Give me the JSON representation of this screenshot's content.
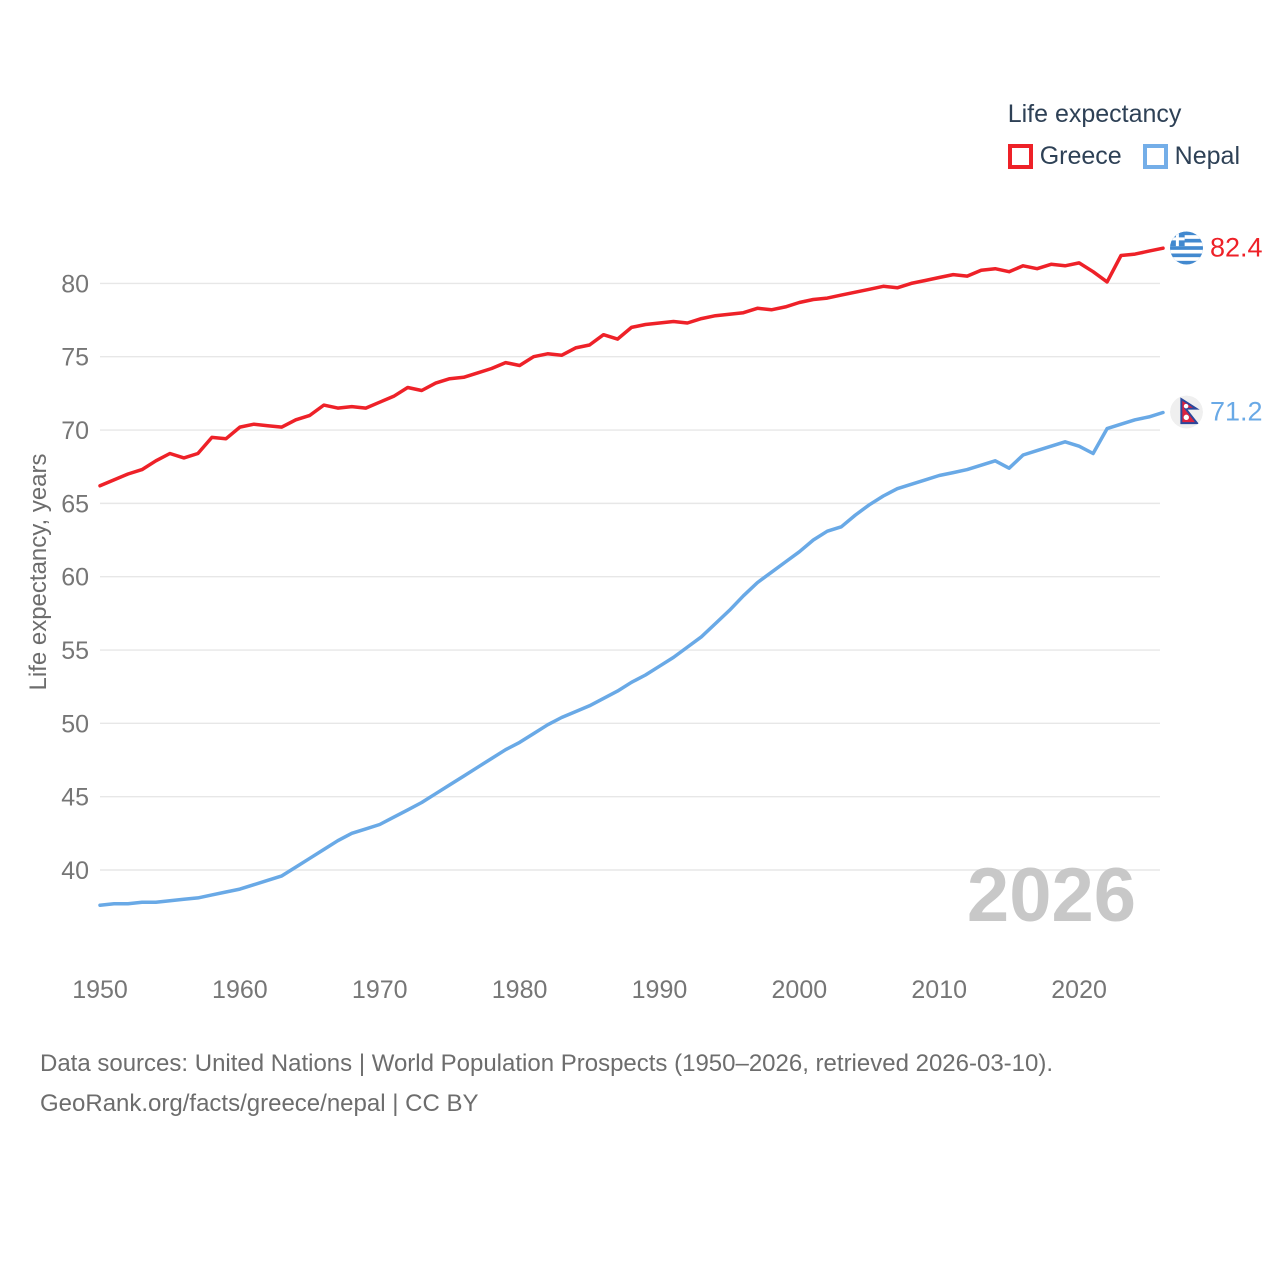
{
  "legend": {
    "title": "Life expectancy",
    "items": [
      {
        "label": "Greece",
        "color": "#ee2128"
      },
      {
        "label": "Nepal",
        "color": "#74aee8"
      }
    ]
  },
  "watermark": "2026",
  "footer": {
    "line1": "Data sources: United Nations | World Population Prospects (1950–2026, retrieved 2026-03-10).",
    "line2": "GeoRank.org/facts/greece/nepal | CC BY"
  },
  "colors": {
    "greece_line": "#ee2128",
    "nepal_line": "#69a9e6",
    "tick_label": "#767676",
    "axis_title": "#6d6d6d",
    "gridline": "#e7e7e7",
    "watermark": "#c8c8c8",
    "legend_text": "#2e4156"
  },
  "chart_data": {
    "type": "line",
    "title": "Life expectancy",
    "xlabel": "",
    "ylabel": "Life expectancy, years",
    "xlim": [
      1950,
      2026
    ],
    "ylim": [
      36.5,
      84
    ],
    "grid": true,
    "legend_position": "top-right",
    "xticks": [
      1950,
      1960,
      1970,
      1980,
      1990,
      2000,
      2010,
      2020
    ],
    "yticks": [
      40,
      45,
      50,
      55,
      60,
      65,
      70,
      75,
      80
    ],
    "x": [
      1950,
      1951,
      1952,
      1953,
      1954,
      1955,
      1956,
      1957,
      1958,
      1959,
      1960,
      1961,
      1962,
      1963,
      1964,
      1965,
      1966,
      1967,
      1968,
      1969,
      1970,
      1971,
      1972,
      1973,
      1974,
      1975,
      1976,
      1977,
      1978,
      1979,
      1980,
      1981,
      1982,
      1983,
      1984,
      1985,
      1986,
      1987,
      1988,
      1989,
      1990,
      1991,
      1992,
      1993,
      1994,
      1995,
      1996,
      1997,
      1998,
      1999,
      2000,
      2001,
      2002,
      2003,
      2004,
      2005,
      2006,
      2007,
      2008,
      2009,
      2010,
      2011,
      2012,
      2013,
      2014,
      2015,
      2016,
      2017,
      2018,
      2019,
      2020,
      2021,
      2022,
      2023,
      2024,
      2025,
      2026
    ],
    "series": [
      {
        "name": "Greece",
        "color": "#ee2128",
        "end_label": "82.4",
        "end_value": 82.4,
        "values": [
          66.2,
          66.6,
          67.0,
          67.3,
          67.9,
          68.4,
          68.1,
          68.4,
          69.5,
          69.4,
          70.2,
          70.4,
          70.3,
          70.2,
          70.7,
          71.0,
          71.7,
          71.5,
          71.6,
          71.5,
          71.9,
          72.3,
          72.9,
          72.7,
          73.2,
          73.5,
          73.6,
          73.9,
          74.2,
          74.6,
          74.4,
          75.0,
          75.2,
          75.1,
          75.6,
          75.8,
          76.5,
          76.2,
          77.0,
          77.2,
          77.3,
          77.4,
          77.3,
          77.6,
          77.8,
          77.9,
          78.0,
          78.3,
          78.2,
          78.4,
          78.7,
          78.9,
          79.0,
          79.2,
          79.4,
          79.6,
          79.8,
          79.7,
          80.0,
          80.2,
          80.4,
          80.6,
          80.5,
          80.9,
          81.0,
          80.8,
          81.2,
          81.0,
          81.3,
          81.2,
          81.4,
          80.8,
          80.1,
          81.9,
          82.0,
          82.2,
          82.4
        ]
      },
      {
        "name": "Nepal",
        "color": "#69a9e6",
        "end_label": "71.2",
        "end_value": 71.2,
        "values": [
          37.6,
          37.7,
          37.7,
          37.8,
          37.8,
          37.9,
          38.0,
          38.1,
          38.3,
          38.5,
          38.7,
          39.0,
          39.3,
          39.6,
          40.2,
          40.8,
          41.4,
          42.0,
          42.5,
          42.8,
          43.1,
          43.6,
          44.1,
          44.6,
          45.2,
          45.8,
          46.4,
          47.0,
          47.6,
          48.2,
          48.7,
          49.3,
          49.9,
          50.4,
          50.8,
          51.2,
          51.7,
          52.2,
          52.8,
          53.3,
          53.9,
          54.5,
          55.2,
          55.9,
          56.8,
          57.7,
          58.7,
          59.6,
          60.3,
          61.0,
          61.7,
          62.5,
          63.1,
          63.4,
          64.2,
          64.9,
          65.5,
          66.0,
          66.3,
          66.6,
          66.9,
          67.1,
          67.3,
          67.6,
          67.9,
          67.4,
          68.3,
          68.6,
          68.9,
          69.2,
          68.9,
          68.4,
          70.1,
          70.4,
          70.7,
          70.9,
          71.2
        ]
      }
    ]
  }
}
